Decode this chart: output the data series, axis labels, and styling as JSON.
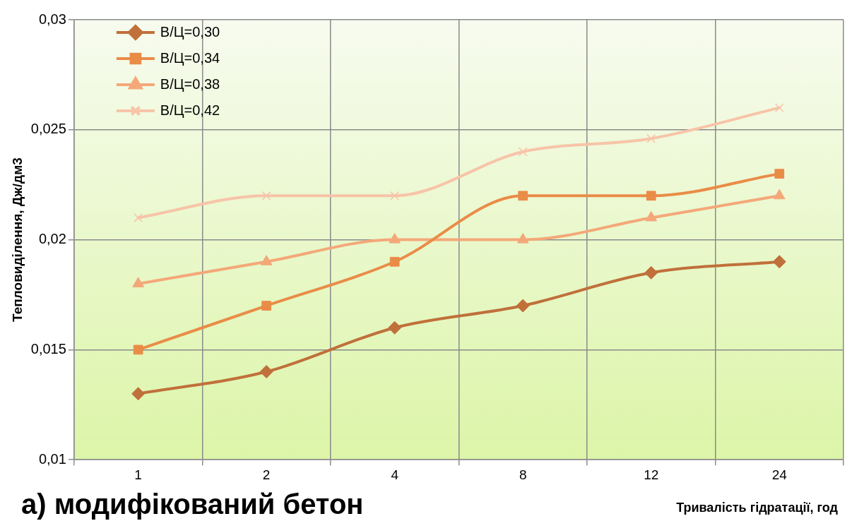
{
  "chart_data": {
    "type": "line",
    "xlabel": "Тривалість гідратації, год",
    "ylabel": "Тепловиділення, Дж/дм3",
    "categories": [
      "1",
      "2",
      "4",
      "8",
      "12",
      "24"
    ],
    "series": [
      {
        "name": "В/Ц=0,30",
        "color": "#c0703a",
        "marker": "diamond",
        "values": [
          0.013,
          0.014,
          0.016,
          0.017,
          0.0185,
          0.019
        ]
      },
      {
        "name": "В/Ц=0,34",
        "color": "#e98c47",
        "marker": "square",
        "values": [
          0.015,
          0.017,
          0.019,
          0.022,
          0.022,
          0.023
        ]
      },
      {
        "name": "В/Ц=0,38",
        "color": "#f4a879",
        "marker": "triangle",
        "values": [
          0.018,
          0.019,
          0.02,
          0.02,
          0.021,
          0.022
        ]
      },
      {
        "name": "В/Ц=0,42",
        "color": "#f7c4a8",
        "marker": "cross",
        "values": [
          0.021,
          0.022,
          0.022,
          0.024,
          0.0246,
          0.026
        ]
      }
    ],
    "ylim": [
      0.01,
      0.03
    ],
    "yticks": [
      {
        "value": 0.01,
        "label": "0,01"
      },
      {
        "value": 0.015,
        "label": "0,015"
      },
      {
        "value": 0.02,
        "label": "0,02"
      },
      {
        "value": 0.025,
        "label": "0,025"
      },
      {
        "value": 0.03,
        "label": "0,03"
      }
    ],
    "grid": true,
    "legend": "top left",
    "line_style": "solid",
    "annotations": [
      "а) модифікований бетон"
    ]
  }
}
